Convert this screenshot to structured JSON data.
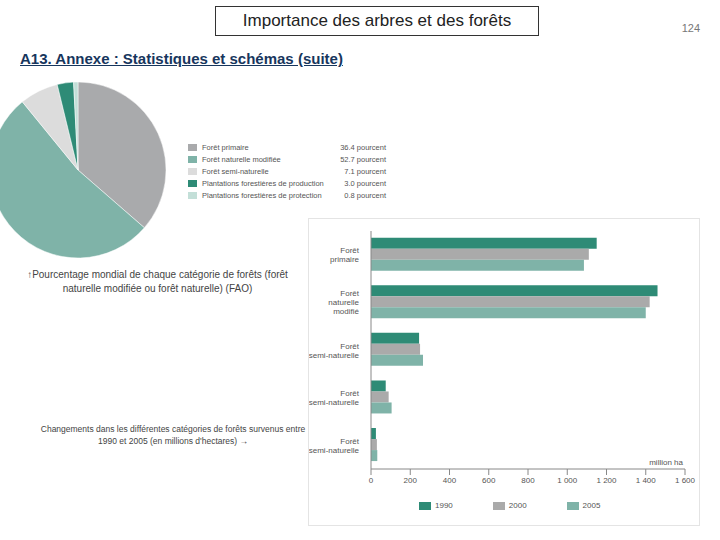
{
  "header": {
    "title": "Importance des arbres et des forêts",
    "page": 124,
    "subtitle": "A13. Annexe : Statistiques et schémas (suite)"
  },
  "chart_data": [
    {
      "type": "pie",
      "title": "↑Pourcentage mondial de chaque catégorie de forêts (forêt naturelle modifiée ou forêt naturelle) (FAO)",
      "categories": [
        "Forêt primaire",
        "Forêt naturelle modifiée",
        "Forêt semi-naturelle",
        "Plantations forestières de production",
        "Plantations forestières de protection"
      ],
      "values": [
        36.4,
        52.7,
        7.1,
        3.0,
        0.8
      ],
      "value_labels": [
        "36.4 pourcent",
        "52.7 pourcent",
        "7.1 pourcent",
        "3.0 pourcent",
        "0.8 pourcent"
      ],
      "colors": [
        "#a9aaac",
        "#7fb3a8",
        "#dcdcdc",
        "#2e8b76",
        "#c3dfd8"
      ],
      "legend": "right"
    },
    {
      "type": "bar",
      "orientation": "horizontal",
      "title": "Changements dans les différentes catégories de forêts survenus entre 1990 et 2005 (en millions d'hectares) →",
      "categories": [
        "Forêt primaire",
        "Forêt naturelle modifié",
        "Forêt semi-naturelle",
        "Forêt semi-naturelle",
        "Forêt semi-naturelle"
      ],
      "series": [
        {
          "name": "1990",
          "color": "#2e8b76",
          "values": [
            1150,
            1460,
            245,
            75,
            25
          ]
        },
        {
          "name": "2000",
          "color": "#aaaaaa",
          "values": [
            1110,
            1420,
            250,
            90,
            30
          ]
        },
        {
          "name": "2005",
          "color": "#7fb3a8",
          "values": [
            1085,
            1400,
            265,
            105,
            32
          ]
        }
      ],
      "xlim": [
        0,
        1600
      ],
      "xticks": [
        0,
        200,
        400,
        600,
        800,
        {
          "value": 1000,
          "label": "1 000"
        },
        {
          "value": 1200,
          "label": "1 200"
        },
        {
          "value": 1400,
          "label": "1 400"
        },
        {
          "value": 1600,
          "label": "1 600"
        }
      ],
      "x_label": "million ha",
      "legend": "bottom",
      "grid": false
    }
  ]
}
